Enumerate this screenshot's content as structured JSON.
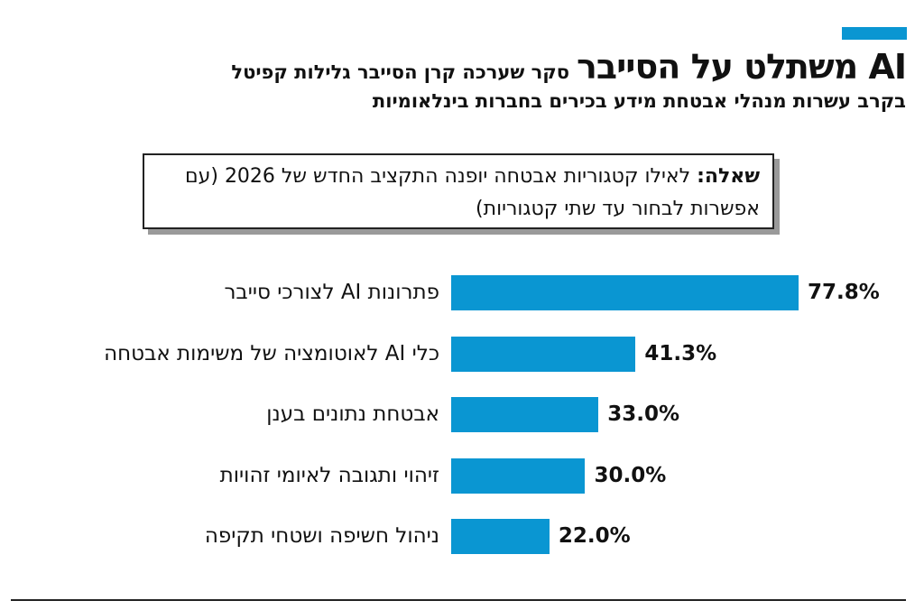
{
  "header": {
    "title": "AI משתלט על הסייבר",
    "subtitle_line1": "סקר שערכה קרן הסייבר גלילות קפיטל",
    "subtitle_line2": "בקרב עשרות מנהלי אבטחת מידע בכירים בחברות בינלאומיות"
  },
  "question": {
    "prefix": "שאלה:",
    "text": " לאילו קטגוריות אבטחה יופנה התקציב החדש של 2026 (עם אפשרות לבחור עד שתי קטגוריות)"
  },
  "colors": {
    "bar": "#0a96d2",
    "accent": "#0a96d2"
  },
  "chart_data": {
    "type": "bar",
    "orientation": "horizontal",
    "categories": [
      "פתרונות AI לצורכי סייבר",
      "כלי AI לאוטומציה של משימות אבטחה",
      "אבטחת נתונים בענן",
      "זיהוי ותגובה לאיומי זהויות",
      "ניהול חשיפה ושטחי תקיפה"
    ],
    "values": [
      77.8,
      41.3,
      33.0,
      30.0,
      22.0
    ],
    "value_labels": [
      "77.8%",
      "41.3%",
      "33.0%",
      "30.0%",
      "22.0%"
    ],
    "unit": "%"
  }
}
